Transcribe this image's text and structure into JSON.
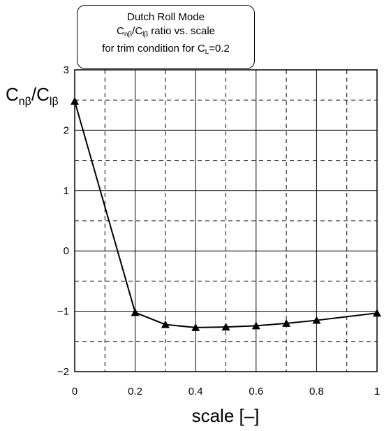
{
  "chart_data": {
    "type": "line",
    "title": {
      "line1": "Dutch Roll Mode",
      "line2": {
        "base_a": "C",
        "sub_a": "nβ",
        "slash": "/",
        "base_b": "C",
        "sub_b": "lβ",
        "rest": " ratio vs. scale"
      },
      "line3": {
        "prefix": "for trim condition for C",
        "sub": "L",
        "suffix": "=0.2"
      }
    },
    "xlabel": "scale [–]",
    "ylabel": {
      "base_a": "C",
      "sub_a": "nβ",
      "slash": "/",
      "base_b": "C",
      "sub_b": "lβ"
    },
    "xlim": [
      0,
      1
    ],
    "ylim": [
      -2,
      3
    ],
    "xticks": [
      0,
      0.2,
      0.4,
      0.6,
      0.8,
      1
    ],
    "xtick_labels": [
      "0",
      "0.2",
      "0.4",
      "0.6",
      "0.8",
      "1"
    ],
    "yticks": [
      -2,
      -1,
      0,
      1,
      2,
      3
    ],
    "ytick_labels": [
      "−2",
      "−1",
      "0",
      "1",
      "2",
      "3"
    ],
    "grid": true,
    "marker": "triangle",
    "x": [
      0,
      0.2,
      0.3,
      0.4,
      0.5,
      0.6,
      0.7,
      0.8,
      1.0
    ],
    "y": [
      2.48,
      -1.02,
      -1.22,
      -1.27,
      -1.26,
      -1.24,
      -1.2,
      -1.15,
      -1.03
    ]
  }
}
